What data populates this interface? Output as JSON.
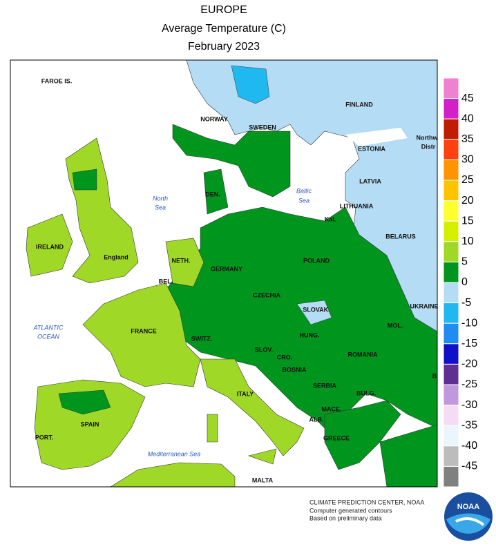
{
  "title": [
    "EUROPE",
    "Average Temperature (C)",
    "February 2023"
  ],
  "places": [
    "FAROE IS.",
    "NORWAY",
    "SWEDEN",
    "FINLAND",
    "ESTONIA",
    "LATVIA",
    "LITHUANIA",
    "Kal.",
    "BELARUS",
    "Northw",
    "Distr",
    "DEN.",
    "IRELAND",
    "England",
    "NETH.",
    "BEL.",
    "GERMANY",
    "POLAND",
    "CZECHIA",
    "SLOVAK.",
    "UKRAINE",
    "MOL.",
    "HUNG.",
    "SWITZ.",
    "SLOV.",
    "ROMANIA",
    "CRO.",
    "FRANCE",
    "BOSNIA",
    "SERBIA",
    "ITALY",
    "BULG.",
    "MACE.",
    "ALB.",
    "SPAIN",
    "GREECE",
    "PORT.",
    "MALTA",
    "B"
  ],
  "seas": [
    "North",
    "Sea",
    "Baltic",
    "Sea",
    "ATLANTIC",
    "OCEAN",
    "Mediterranean Sea"
  ],
  "legend": {
    "colors": [
      "#f080d0",
      "#d21fc8",
      "#c01c00",
      "#ff4010",
      "#ff9400",
      "#ffc400",
      "#ffff30",
      "#d4f000",
      "#a0d828",
      "#00961e",
      "#b4dcf4",
      "#20b8f0",
      "#1e8cf0",
      "#1010c8",
      "#603090",
      "#c098dc",
      "#f4dcf4",
      "#eaf6fc",
      "#bcbcbc",
      "#808080"
    ],
    "labels": [
      45,
      40,
      35,
      30,
      25,
      20,
      15,
      10,
      5,
      0,
      -5,
      -10,
      -15,
      -20,
      -25,
      -30,
      -35,
      -40,
      -45
    ]
  },
  "footer": [
    "CLIMATE PREDICTION CENTER, NOAA",
    "Computer generated contours",
    "Based on preliminary data"
  ],
  "logo": "NOAA"
}
